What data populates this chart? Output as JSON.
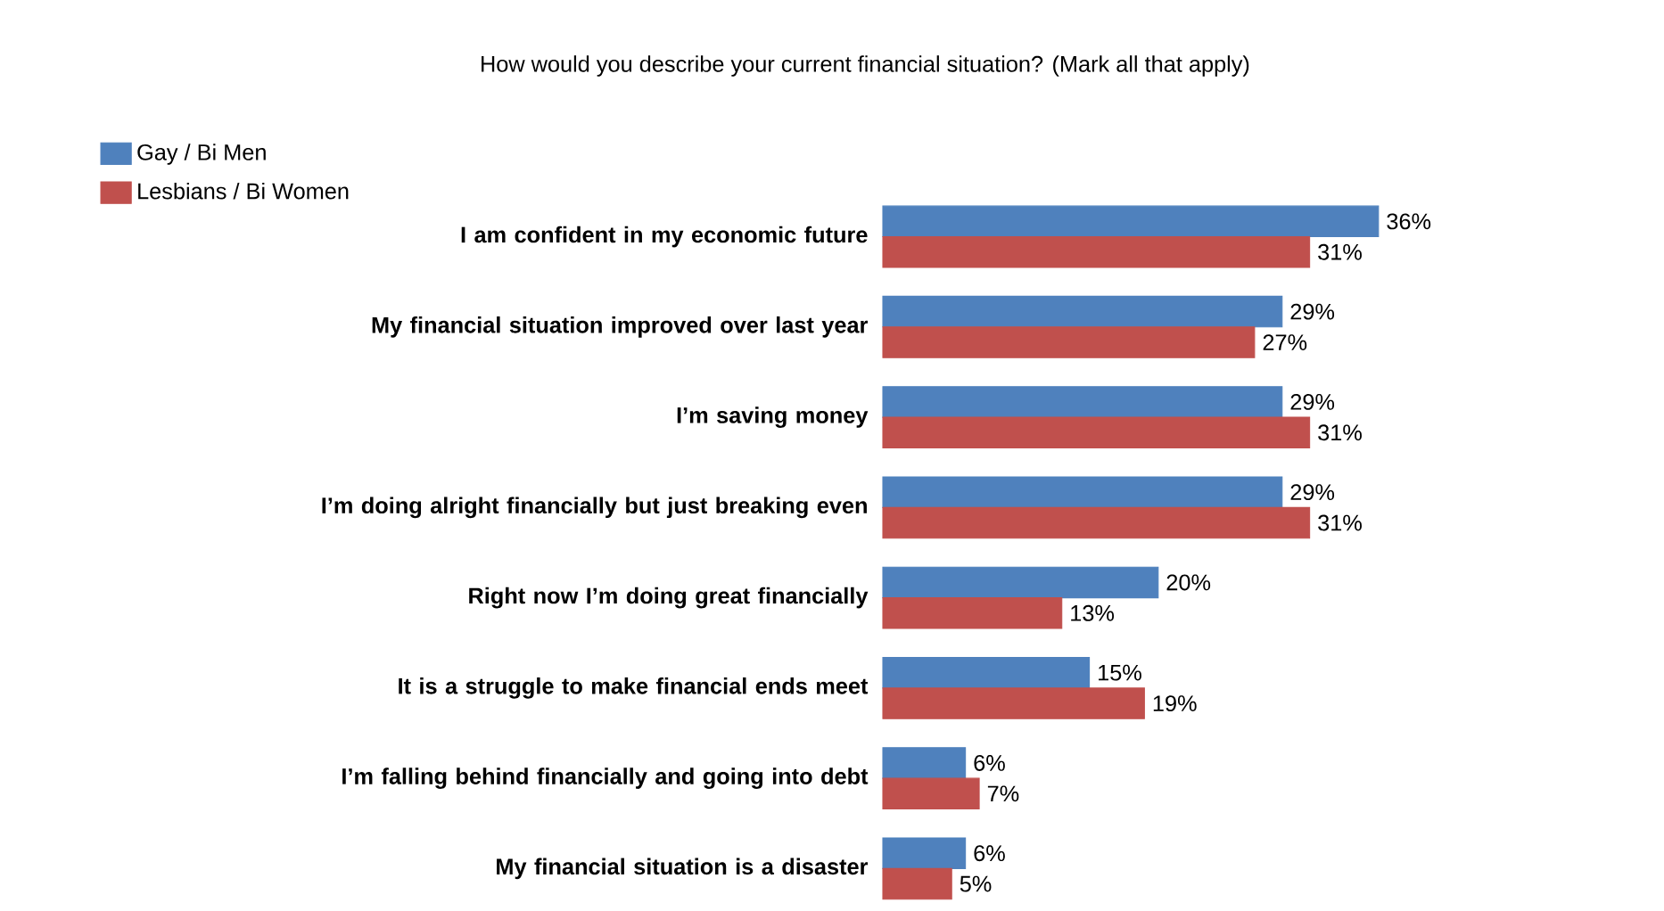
{
  "chart_data": {
    "type": "bar",
    "orientation": "horizontal",
    "title": "How would you describe your current financial situation? (Mark all that apply)",
    "categories": [
      "I am confident in my economic future",
      "My financial situation improved over last year",
      "I’m saving money",
      "I’m doing alright financially but just breaking even",
      "Right now I’m doing great financially",
      "It is a struggle to make financial ends meet",
      "I’m falling behind financially and going into debt",
      "My financial situation is a disaster"
    ],
    "series": [
      {
        "name": "Gay / Bi Men",
        "color": "#4f81bd",
        "values": [
          36,
          29,
          29,
          29,
          20,
          15,
          6,
          6
        ],
        "value_labels": [
          "36%",
          "29%",
          "29%",
          "29%",
          "20%",
          "15%",
          "6%",
          "6%"
        ]
      },
      {
        "name": "Lesbians / Bi Women",
        "color": "#c0504d",
        "values": [
          31,
          27,
          31,
          31,
          13,
          19,
          7,
          5
        ],
        "value_labels": [
          "31%",
          "27%",
          "31%",
          "31%",
          "13%",
          "19%",
          "7%",
          "5%"
        ]
      }
    ],
    "legend": "top left"
  }
}
